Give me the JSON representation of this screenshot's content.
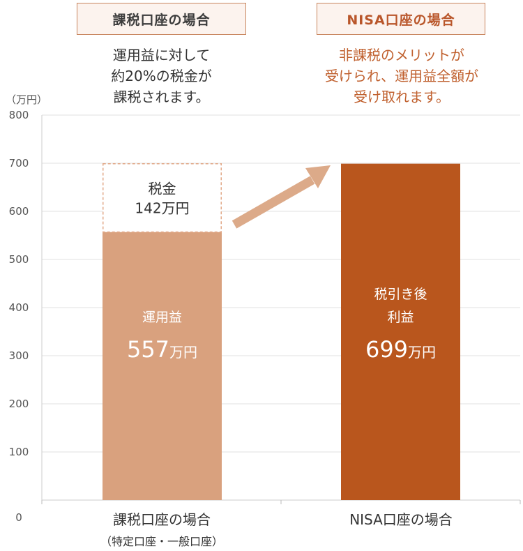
{
  "headers": {
    "taxable": "課税口座の場合",
    "nisa": "NISA口座の場合"
  },
  "descriptions": {
    "taxable": [
      "運用益に対して",
      "約20%の税金が",
      "課税されます。"
    ],
    "nisa": [
      "非課税のメリットが",
      "受けられ、運用益全額が",
      "受け取れます。"
    ]
  },
  "colors": {
    "taxable_bar": "#d9a17e",
    "nisa_bar": "#b9561d",
    "tax_border": "#e2a888",
    "arrow": "#dcaa89",
    "accent_text": "#c0602e",
    "grid": "#e0e0e0"
  },
  "chart_data": {
    "type": "bar",
    "stacked": true,
    "unit": "（万円）",
    "ylim": [
      0,
      800
    ],
    "yticks": [
      0,
      100,
      200,
      300,
      400,
      500,
      600,
      700,
      800
    ],
    "categories": [
      "課税口座の場合",
      "NISA口座の場合"
    ],
    "category_subtitles": [
      "（特定口座・一般口座）",
      ""
    ],
    "series": [
      {
        "name": "運用益 / 税引き後利益",
        "values": [
          557,
          699
        ],
        "labels": [
          {
            "lines": [
              "運用益"
            ],
            "number": "557",
            "unit": "万円"
          },
          {
            "lines": [
              "税引き後",
              "利益"
            ],
            "number": "699",
            "unit": "万円"
          }
        ]
      },
      {
        "name": "税金",
        "values": [
          142,
          0
        ],
        "labels": [
          {
            "lines": [
              "税金",
              "142万円"
            ]
          },
          null
        ]
      }
    ],
    "grid": true
  }
}
